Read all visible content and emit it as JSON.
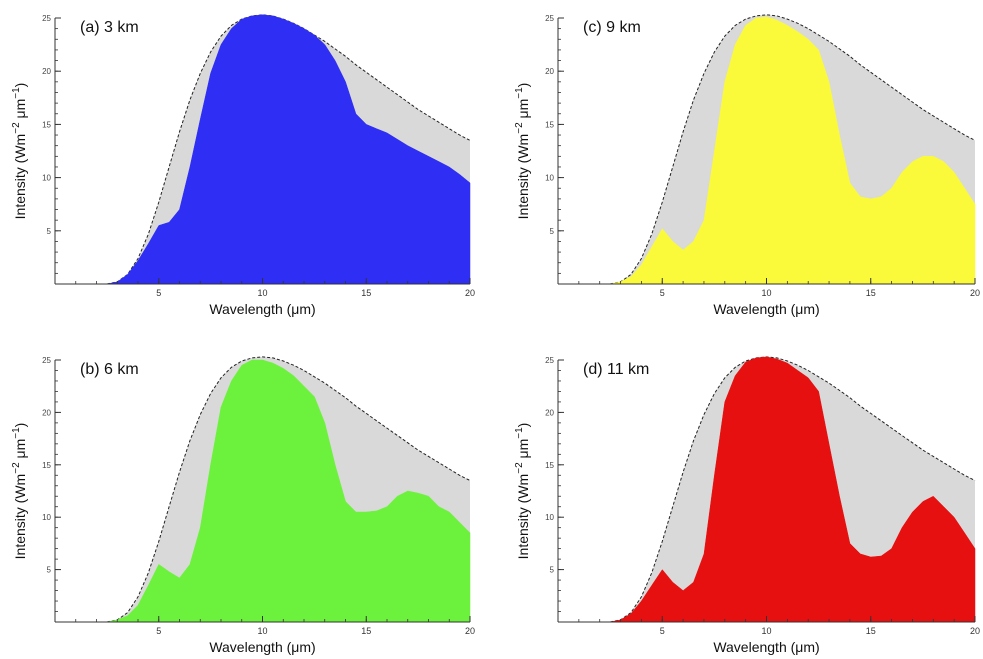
{
  "chart_data": [
    {
      "type": "area",
      "panel_label": "(a) 3 km",
      "xlabel": "Wavelength (μm)",
      "ylabel": "Intensity (Wm",
      "xlim": [
        0,
        20
      ],
      "ylim": [
        0,
        25
      ],
      "x_ticks": [
        "5",
        "10",
        "15",
        "20"
      ],
      "y_ticks": [
        "5",
        "10",
        "15",
        "20",
        "25"
      ],
      "fill_color": "#2e2ef5",
      "envelope_color": "#d9d9d9",
      "x": [
        2.5,
        3,
        3.5,
        4,
        4.5,
        5,
        5.5,
        6,
        6.5,
        7,
        7.5,
        8,
        8.5,
        9,
        9.5,
        10,
        10.5,
        11,
        11.5,
        12,
        12.5,
        13,
        13.5,
        14,
        14.5,
        15,
        15.5,
        16,
        16.5,
        17,
        17.5,
        18,
        18.5,
        19,
        19.5,
        20
      ],
      "envelope": [
        0,
        0.2,
        0.9,
        2.4,
        4.7,
        7.7,
        11.0,
        14.3,
        17.3,
        19.8,
        21.8,
        23.3,
        24.3,
        24.9,
        25.2,
        25.3,
        25.2,
        24.9,
        24.5,
        24.0,
        23.4,
        22.8,
        22.1,
        21.4,
        20.6,
        19.9,
        19.2,
        18.5,
        17.8,
        17.1,
        16.4,
        15.8,
        15.2,
        14.6,
        14.0,
        13.5
      ],
      "values": [
        0,
        0.2,
        0.9,
        2.2,
        3.8,
        5.5,
        5.8,
        7.0,
        11.0,
        15.5,
        19.8,
        22.5,
        24.0,
        24.9,
        25.2,
        25.3,
        25.2,
        24.9,
        24.5,
        24.0,
        23.4,
        22.5,
        21.0,
        19.0,
        16.0,
        15.0,
        14.6,
        14.2,
        13.6,
        13.0,
        12.5,
        12.0,
        11.5,
        11.0,
        10.3,
        9.5
      ]
    },
    {
      "type": "area",
      "panel_label": "(b) 6 km",
      "xlabel": "Wavelength (μm)",
      "ylabel": "Intensity (Wm",
      "xlim": [
        0,
        20
      ],
      "ylim": [
        0,
        25
      ],
      "x_ticks": [
        "5",
        "10",
        "15",
        "20"
      ],
      "y_ticks": [
        "5",
        "10",
        "15",
        "20",
        "25"
      ],
      "fill_color": "#6cf23c",
      "envelope_color": "#d9d9d9",
      "x": [
        2.5,
        3,
        3.5,
        4,
        4.5,
        5,
        5.5,
        6,
        6.5,
        7,
        7.5,
        8,
        8.5,
        9,
        9.5,
        10,
        10.5,
        11,
        11.5,
        12,
        12.5,
        13,
        13.5,
        14,
        14.5,
        15,
        15.5,
        16,
        16.5,
        17,
        17.5,
        18,
        18.5,
        19,
        19.5,
        20
      ],
      "envelope": [
        0,
        0.2,
        0.9,
        2.4,
        4.7,
        7.7,
        11.0,
        14.3,
        17.3,
        19.8,
        21.8,
        23.3,
        24.3,
        24.9,
        25.2,
        25.3,
        25.2,
        24.9,
        24.5,
        24.0,
        23.4,
        22.8,
        22.1,
        21.4,
        20.6,
        19.9,
        19.2,
        18.5,
        17.8,
        17.1,
        16.4,
        15.8,
        15.2,
        14.6,
        14.0,
        13.5
      ],
      "values": [
        0,
        0.2,
        0.6,
        1.6,
        3.5,
        5.5,
        4.8,
        4.2,
        5.5,
        9.0,
        15.0,
        20.5,
        23.0,
        24.5,
        25.0,
        25.0,
        24.7,
        24.2,
        23.5,
        22.5,
        21.5,
        19.0,
        15.0,
        11.5,
        10.5,
        10.5,
        10.6,
        11.0,
        12.0,
        12.5,
        12.3,
        12.0,
        11.0,
        10.5,
        9.5,
        8.5
      ]
    },
    {
      "type": "area",
      "panel_label": "(c) 9 km",
      "xlabel": "Wavelength (μm)",
      "ylabel": "Intensity (Wm",
      "xlim": [
        0,
        20
      ],
      "ylim": [
        0,
        25
      ],
      "x_ticks": [
        "5",
        "10",
        "15",
        "20"
      ],
      "y_ticks": [
        "5",
        "10",
        "15",
        "20",
        "25"
      ],
      "fill_color": "#fafa3a",
      "envelope_color": "#d9d9d9",
      "x": [
        2.5,
        3,
        3.5,
        4,
        4.5,
        5,
        5.5,
        6,
        6.5,
        7,
        7.5,
        8,
        8.5,
        9,
        9.5,
        10,
        10.5,
        11,
        11.5,
        12,
        12.5,
        13,
        13.5,
        14,
        14.5,
        15,
        15.5,
        16,
        16.5,
        17,
        17.5,
        18,
        18.5,
        19,
        19.5,
        20
      ],
      "envelope": [
        0,
        0.2,
        0.9,
        2.4,
        4.7,
        7.7,
        11.0,
        14.3,
        17.3,
        19.8,
        21.8,
        23.3,
        24.3,
        24.9,
        25.2,
        25.3,
        25.2,
        24.9,
        24.5,
        24.0,
        23.4,
        22.8,
        22.1,
        21.4,
        20.6,
        19.9,
        19.2,
        18.5,
        17.8,
        17.1,
        16.4,
        15.8,
        15.2,
        14.6,
        14.0,
        13.5
      ],
      "values": [
        0,
        0.2,
        0.7,
        1.8,
        3.5,
        5.2,
        4.0,
        3.2,
        4.0,
        6.0,
        12.5,
        19.0,
        22.5,
        24.3,
        25.0,
        25.1,
        24.8,
        24.3,
        23.7,
        23.0,
        22.0,
        19.0,
        14.0,
        9.5,
        8.2,
        8.0,
        8.2,
        9.0,
        10.5,
        11.5,
        12.0,
        12.0,
        11.5,
        10.5,
        9.0,
        7.5
      ]
    },
    {
      "type": "area",
      "panel_label": "(d) 11 km",
      "xlabel": "Wavelength (μm)",
      "ylabel": "Intensity (Wm",
      "xlim": [
        0,
        20
      ],
      "ylim": [
        0,
        25
      ],
      "x_ticks": [
        "5",
        "10",
        "15",
        "20"
      ],
      "y_ticks": [
        "5",
        "10",
        "15",
        "20",
        "25"
      ],
      "fill_color": "#e61010",
      "envelope_color": "#d9d9d9",
      "x": [
        2.5,
        3,
        3.5,
        4,
        4.5,
        5,
        5.5,
        6,
        6.5,
        7,
        7.5,
        8,
        8.5,
        9,
        9.5,
        10,
        10.5,
        11,
        11.5,
        12,
        12.5,
        13,
        13.5,
        14,
        14.5,
        15,
        15.5,
        16,
        16.5,
        17,
        17.5,
        18,
        18.5,
        19,
        19.5,
        20
      ],
      "envelope": [
        0,
        0.2,
        0.9,
        2.4,
        4.7,
        7.7,
        11.0,
        14.3,
        17.3,
        19.8,
        21.8,
        23.3,
        24.3,
        24.9,
        25.2,
        25.3,
        25.2,
        24.9,
        24.5,
        24.0,
        23.4,
        22.8,
        22.1,
        21.4,
        20.6,
        19.9,
        19.2,
        18.5,
        17.8,
        17.1,
        16.4,
        15.8,
        15.2,
        14.6,
        14.0,
        13.5
      ],
      "values": [
        0,
        0.2,
        0.8,
        2.0,
        3.5,
        5.0,
        3.8,
        3.0,
        3.8,
        6.5,
        14.0,
        21.0,
        23.5,
        24.8,
        25.2,
        25.3,
        25.1,
        24.7,
        24.0,
        23.3,
        22.0,
        17.0,
        12.0,
        7.5,
        6.5,
        6.2,
        6.3,
        7.0,
        9.0,
        10.5,
        11.5,
        12.0,
        11.0,
        10.0,
        8.5,
        7.0
      ]
    }
  ]
}
